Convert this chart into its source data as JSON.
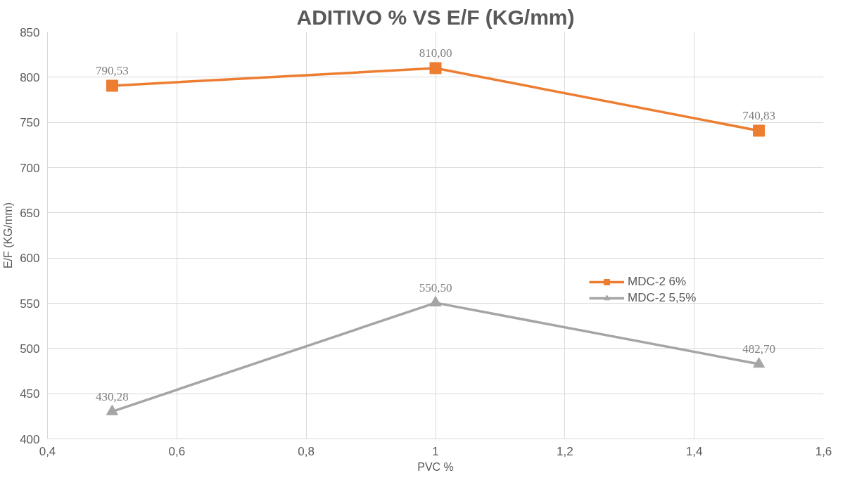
{
  "chart_data": {
    "type": "line",
    "title": "ADITIVO % VS E/F (KG/mm)",
    "xlabel": "PVC %",
    "ylabel": "E/F (KG/mm)",
    "x": [
      0.5,
      1,
      1.5
    ],
    "series": [
      {
        "name": "MDC-2 6%",
        "color": "#ed7d31",
        "marker": "square",
        "values": [
          790.53,
          810.0,
          740.83
        ],
        "value_labels": [
          "790,53",
          "810,00",
          "740,83"
        ]
      },
      {
        "name": "MDC-2 5,5%",
        "color": "#a5a5a5",
        "marker": "triangle",
        "values": [
          430.28,
          550.5,
          482.7
        ],
        "value_labels": [
          "430,28",
          "550,50",
          "482,70"
        ]
      }
    ],
    "xlim": [
      0.4,
      1.6
    ],
    "xticks": [
      {
        "value": 0.4,
        "label": "0,4"
      },
      {
        "value": 0.6,
        "label": "0,6"
      },
      {
        "value": 0.8,
        "label": "0,8"
      },
      {
        "value": 1,
        "label": "1"
      },
      {
        "value": 1.2,
        "label": "1,2"
      },
      {
        "value": 1.4,
        "label": "1,4"
      },
      {
        "value": 1.6,
        "label": "1,6"
      }
    ],
    "ylim": [
      400,
      850
    ],
    "yticks": [
      400,
      450,
      500,
      550,
      600,
      650,
      700,
      750,
      800,
      850
    ],
    "grid": true,
    "legend": "right",
    "line_style": "solid"
  }
}
